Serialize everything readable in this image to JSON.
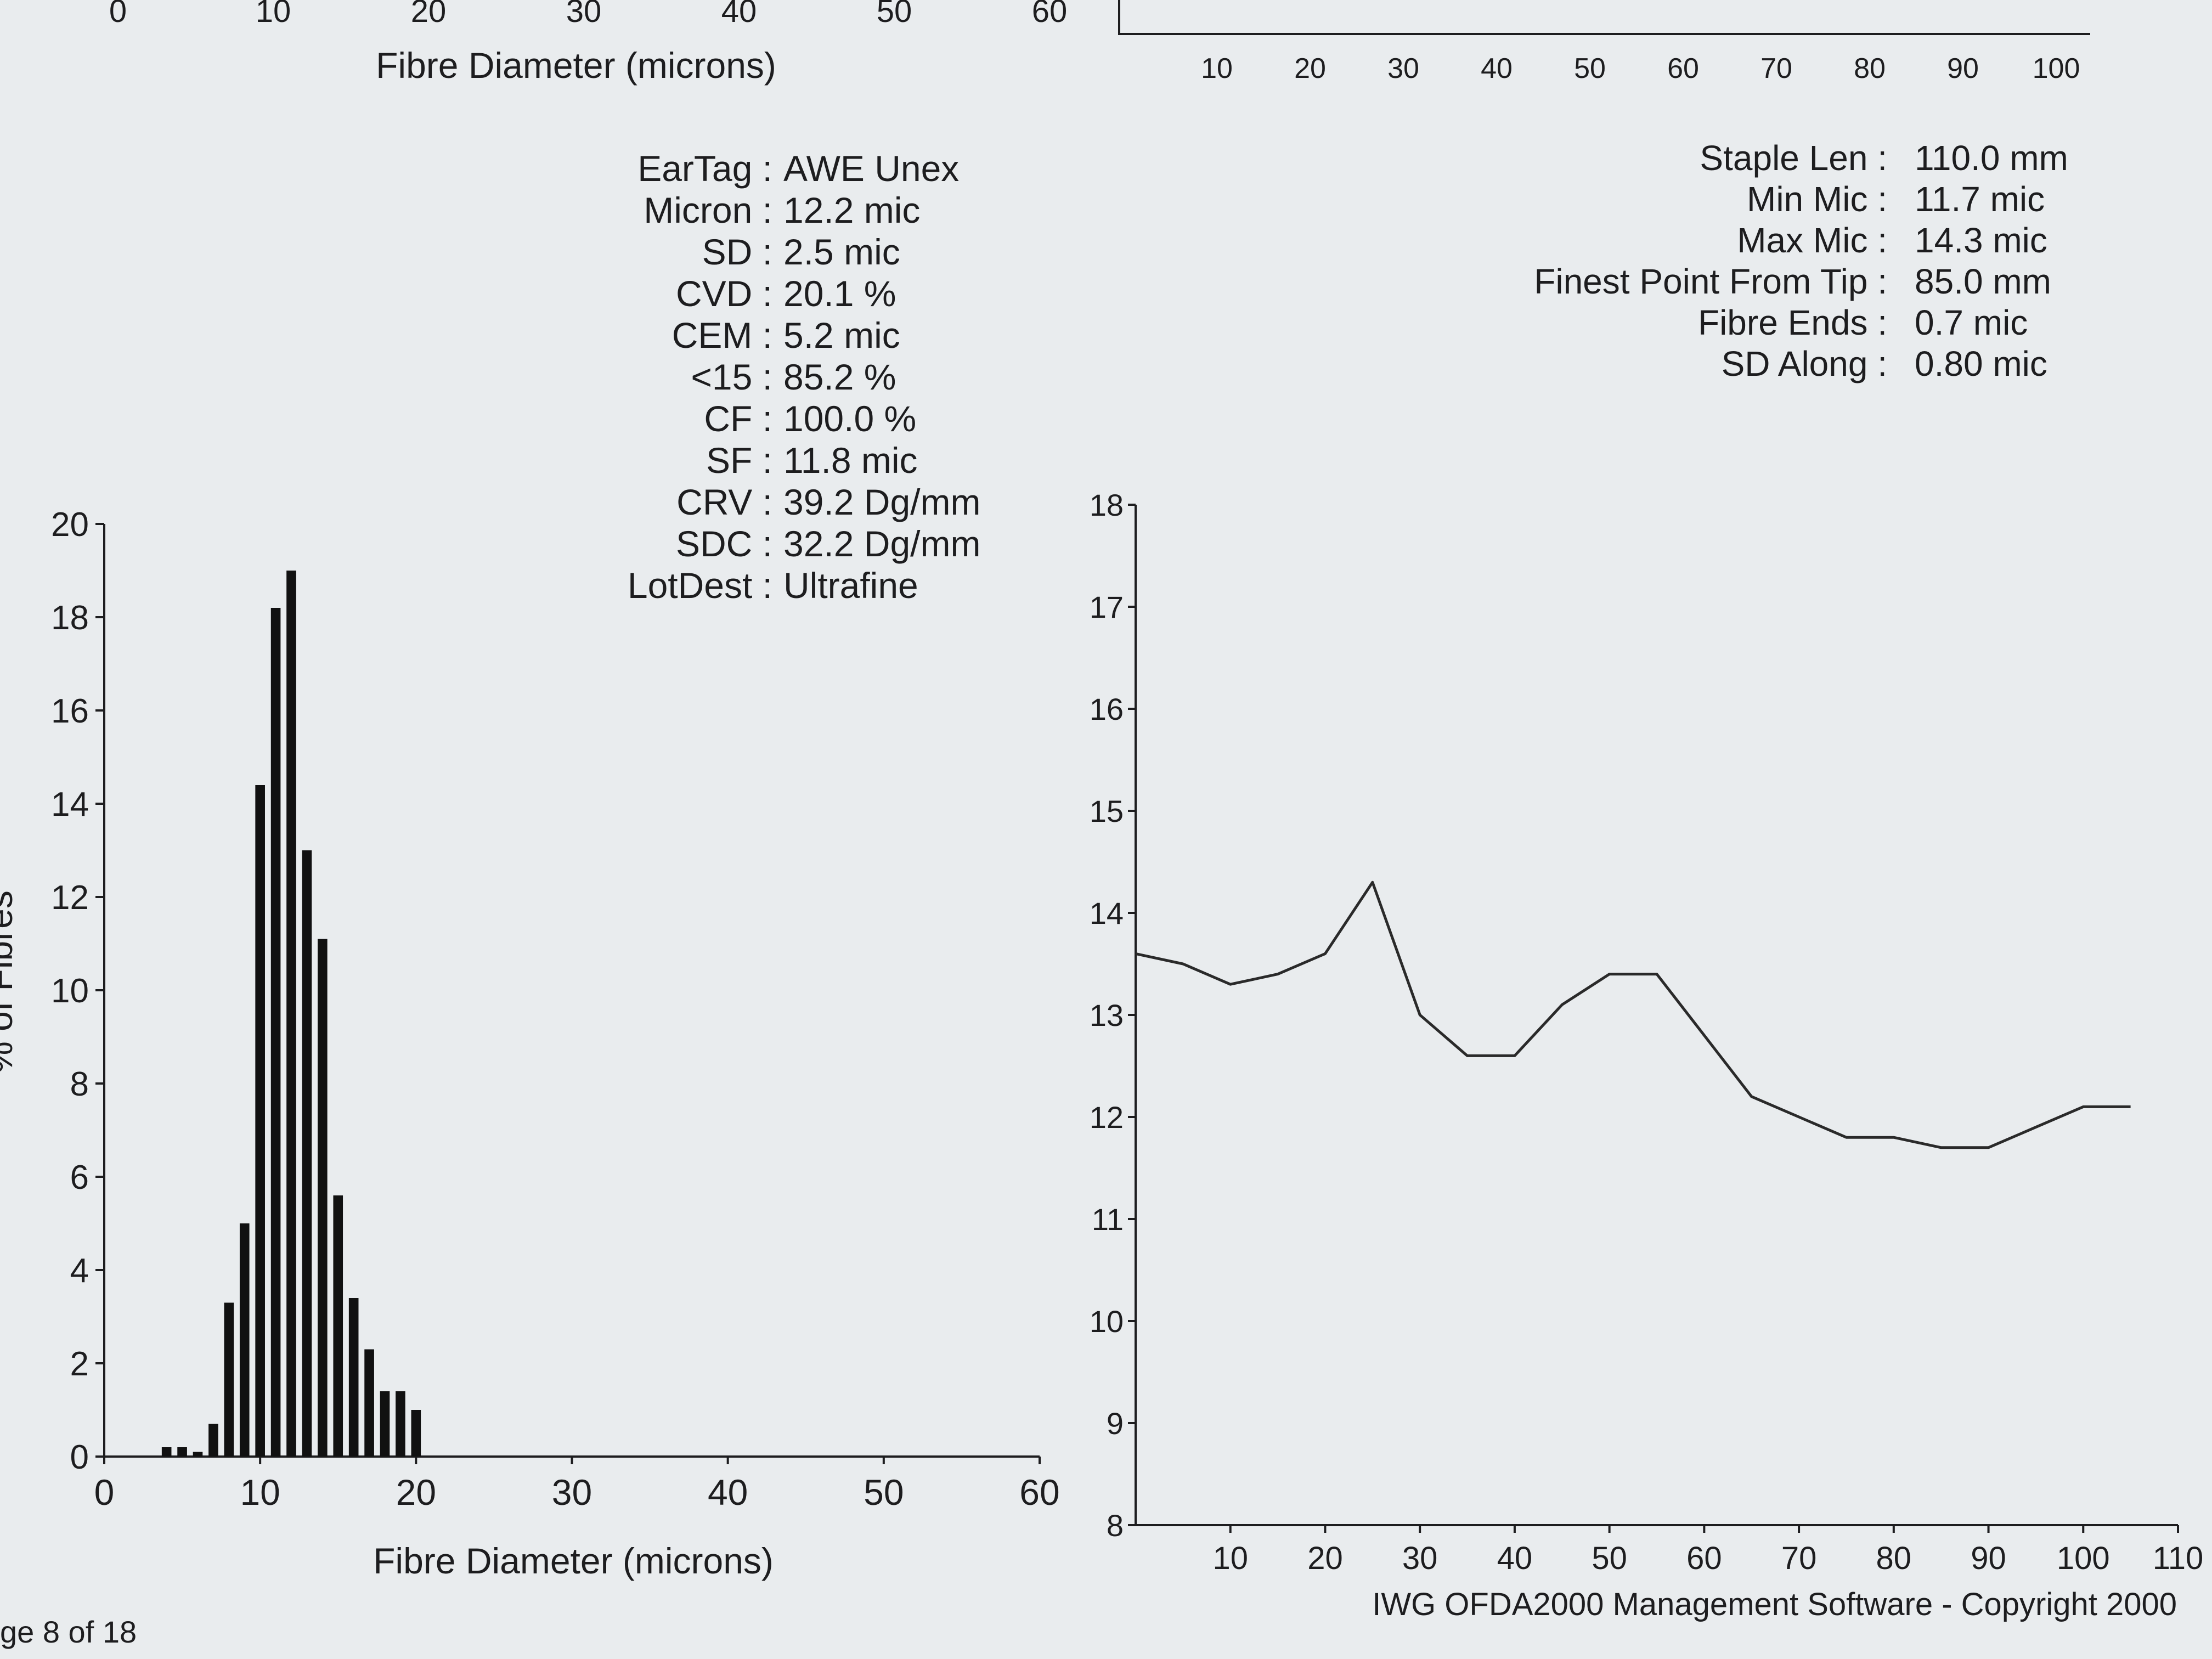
{
  "page": {
    "footer_page": "ge 8 of 18",
    "copyright": "IWG OFDA2000 Management Software - Copyright 2000"
  },
  "top_partial": {
    "left_ticks": [
      "0",
      "10",
      "20",
      "30",
      "40",
      "50",
      "60"
    ],
    "left_xlabel": "Fibre Diameter (microns)",
    "right_ticks": [
      "10",
      "20",
      "30",
      "40",
      "50",
      "60",
      "70",
      "80",
      "90",
      "100"
    ]
  },
  "stats_left": [
    {
      "label": "EarTag :",
      "value": "AWE Unex"
    },
    {
      "label": "Micron :",
      "value": "12.2 mic"
    },
    {
      "label": "SD :",
      "value": "2.5 mic"
    },
    {
      "label": "CVD :",
      "value": "20.1 %"
    },
    {
      "label": "CEM :",
      "value": "5.2 mic"
    },
    {
      "label": "<15 :",
      "value": "85.2 %"
    },
    {
      "label": "CF :",
      "value": "100.0 %"
    },
    {
      "label": "SF :",
      "value": "11.8 mic"
    },
    {
      "label": "CRV :",
      "value": "39.2 Dg/mm"
    },
    {
      "label": "SDC :",
      "value": "32.2 Dg/mm"
    },
    {
      "label": "LotDest :",
      "value": "Ultrafine"
    }
  ],
  "stats_right": [
    {
      "label": "Staple Len :",
      "value": "110.0 mm"
    },
    {
      "label": "Min Mic :",
      "value": "11.7 mic"
    },
    {
      "label": "Max Mic :",
      "value": "14.3 mic"
    },
    {
      "label": "Finest Point From Tip :",
      "value": "85.0 mm"
    },
    {
      "label": "Fibre Ends :",
      "value": "0.7 mic"
    },
    {
      "label": "SD Along :",
      "value": "0.80 mic"
    }
  ],
  "chart_data": [
    {
      "type": "bar",
      "xlabel": "Fibre Diameter (microns)",
      "ylabel": "% of Fibres",
      "xlim": [
        0,
        60
      ],
      "ylim": [
        0,
        20
      ],
      "xticks": [
        0,
        10,
        20,
        30,
        40,
        50,
        60
      ],
      "yticks": [
        0,
        2,
        4,
        6,
        8,
        10,
        12,
        14,
        16,
        18,
        20
      ],
      "x": [
        4,
        5,
        6,
        7,
        8,
        9,
        10,
        11,
        12,
        13,
        14,
        15,
        16,
        17,
        18,
        19,
        20
      ],
      "values": [
        0.2,
        0.2,
        0.1,
        0.7,
        3.3,
        5.0,
        14.4,
        18.2,
        19.0,
        13.0,
        11.1,
        5.6,
        3.4,
        2.3,
        1.4,
        1.4,
        1.0
      ],
      "grid": false
    },
    {
      "type": "line",
      "xlabel": "",
      "ylabel": "",
      "xlim": [
        0,
        110
      ],
      "ylim": [
        8,
        18
      ],
      "xticks": [
        10,
        20,
        30,
        40,
        50,
        60,
        70,
        80,
        90,
        100,
        110
      ],
      "yticks": [
        8,
        9,
        10,
        11,
        12,
        13,
        14,
        15,
        16,
        17,
        18
      ],
      "x": [
        0,
        5,
        10,
        15,
        20,
        25,
        30,
        35,
        40,
        45,
        50,
        55,
        60,
        65,
        70,
        75,
        80,
        85,
        90,
        95,
        100,
        105
      ],
      "y": [
        13.6,
        13.5,
        13.3,
        13.4,
        13.6,
        14.3,
        13.0,
        12.6,
        12.6,
        13.1,
        13.4,
        13.4,
        12.8,
        12.2,
        12.0,
        11.8,
        11.8,
        11.7,
        11.7,
        11.9,
        12.1,
        12.1
      ],
      "grid": false
    }
  ]
}
